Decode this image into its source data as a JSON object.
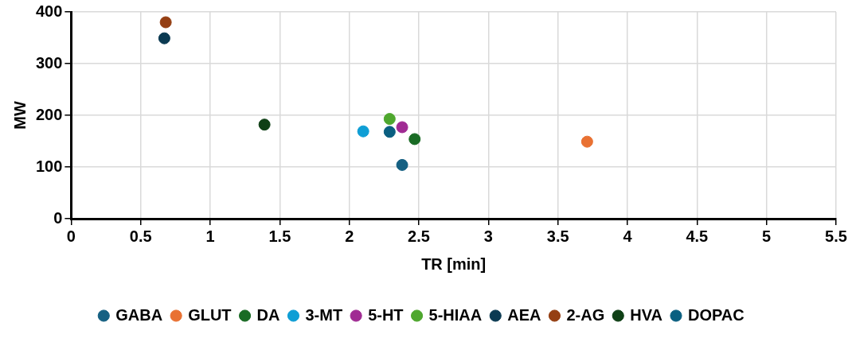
{
  "chart_data": {
    "type": "scatter",
    "xlabel": "TR [min]",
    "ylabel": "MW",
    "xlim": [
      0,
      5.5
    ],
    "xticks": [
      0,
      0.5,
      1,
      1.5,
      2,
      2.5,
      3,
      3.5,
      4,
      4.5,
      5,
      5.5
    ],
    "ylim": [
      0,
      400
    ],
    "yticks": [
      0,
      100,
      200,
      300,
      400
    ],
    "grid": true,
    "legend": "bottom",
    "marker": "circle",
    "series": [
      {
        "name": "GABA",
        "color": "#156082",
        "x": [
          2.38
        ],
        "values": [
          104
        ]
      },
      {
        "name": "GLUT",
        "color": "#e97132",
        "x": [
          3.71
        ],
        "values": [
          149
        ]
      },
      {
        "name": "DA",
        "color": "#196b24",
        "x": [
          2.47
        ],
        "values": [
          154
        ]
      },
      {
        "name": "3-MT",
        "color": "#0f9ed5",
        "x": [
          2.1
        ],
        "values": [
          169
        ]
      },
      {
        "name": "5-HT",
        "color": "#a02b93",
        "x": [
          2.38
        ],
        "values": [
          177
        ]
      },
      {
        "name": "5-HIAA",
        "color": "#4ea72e",
        "x": [
          2.29
        ],
        "values": [
          193
        ]
      },
      {
        "name": "AEA",
        "color": "#0b3a52",
        "x": [
          0.67
        ],
        "values": [
          349
        ]
      },
      {
        "name": "2-AG",
        "color": "#953f13",
        "x": [
          0.68
        ],
        "values": [
          380
        ]
      },
      {
        "name": "HVA",
        "color": "#0f4016",
        "x": [
          1.39
        ],
        "values": [
          182
        ]
      },
      {
        "name": "DOPAC",
        "color": "#0a5f80",
        "x": [
          2.29
        ],
        "values": [
          168
        ]
      }
    ]
  }
}
